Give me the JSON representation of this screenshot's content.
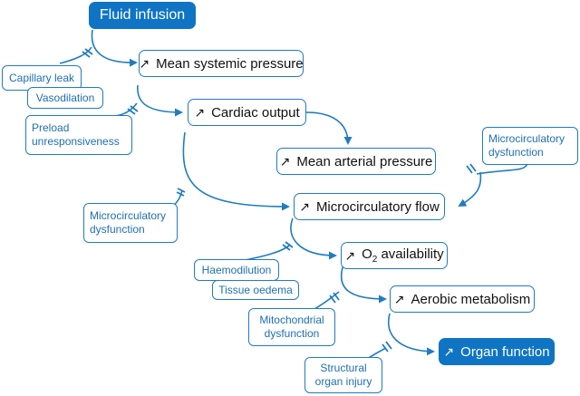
{
  "colors": {
    "accent": "#1f7cc1",
    "modifier_text": "#1f6fb2",
    "filled_box": "#0f74c4"
  },
  "icons": {
    "increase": "north-east-arrow-icon"
  },
  "nodes": {
    "fluid_infusion": "Fluid infusion",
    "mean_systemic_pressure": "Mean systemic pressure",
    "cardiac_output": "Cardiac output",
    "mean_arterial_pressure": "Mean arterial pressure",
    "microcirculatory_flow": "Microcirculatory flow",
    "o2_prefix": "O",
    "o2_sub": "2",
    "o2_suffix": " availability",
    "aerobic_metabolism": "Aerobic metabolism",
    "organ_function": "Organ function"
  },
  "modifiers": {
    "capillary_leak": "Capillary leak",
    "vasodilation": "Vasodilation",
    "preload_line1": "Preload",
    "preload_line2": "unresponsiveness",
    "micro_dys_right_line1": "Microcirculatory",
    "micro_dys_right_line2": "dysfunction",
    "micro_dys_left_line1": "Microcirculatory",
    "micro_dys_left_line2": "dysfunction",
    "haemodilution": "Haemodilution",
    "tissue_oedema": "Tissue oedema",
    "mito_line1": "Mitochondrial",
    "mito_line2": "dysfunction",
    "structural_line1": "Structural",
    "structural_line2": "organ injury"
  }
}
